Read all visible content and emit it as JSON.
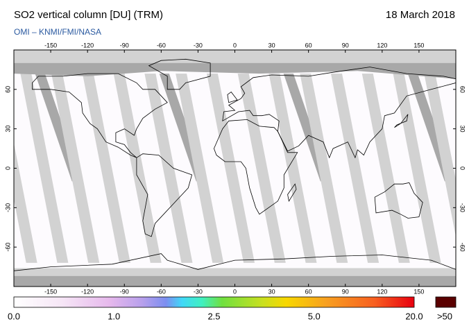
{
  "header": {
    "title": "SO2 vertical column [DU] (TRM)",
    "source": "OMI  –  KNMI/FMI/NASA",
    "date": "18 March 2018"
  },
  "map": {
    "lon_ticks": [
      "-150",
      "-120",
      "-90",
      "-60",
      "-30",
      "0",
      "30",
      "60",
      "90",
      "120",
      "150"
    ],
    "lat_ticks": [
      "60",
      "30",
      "0",
      "-30",
      "-60"
    ]
  },
  "colorbar": {
    "labels": [
      "0.0",
      "1.0",
      "2.5",
      "5.0",
      "20.0"
    ],
    "overflow_label": ">50"
  }
}
